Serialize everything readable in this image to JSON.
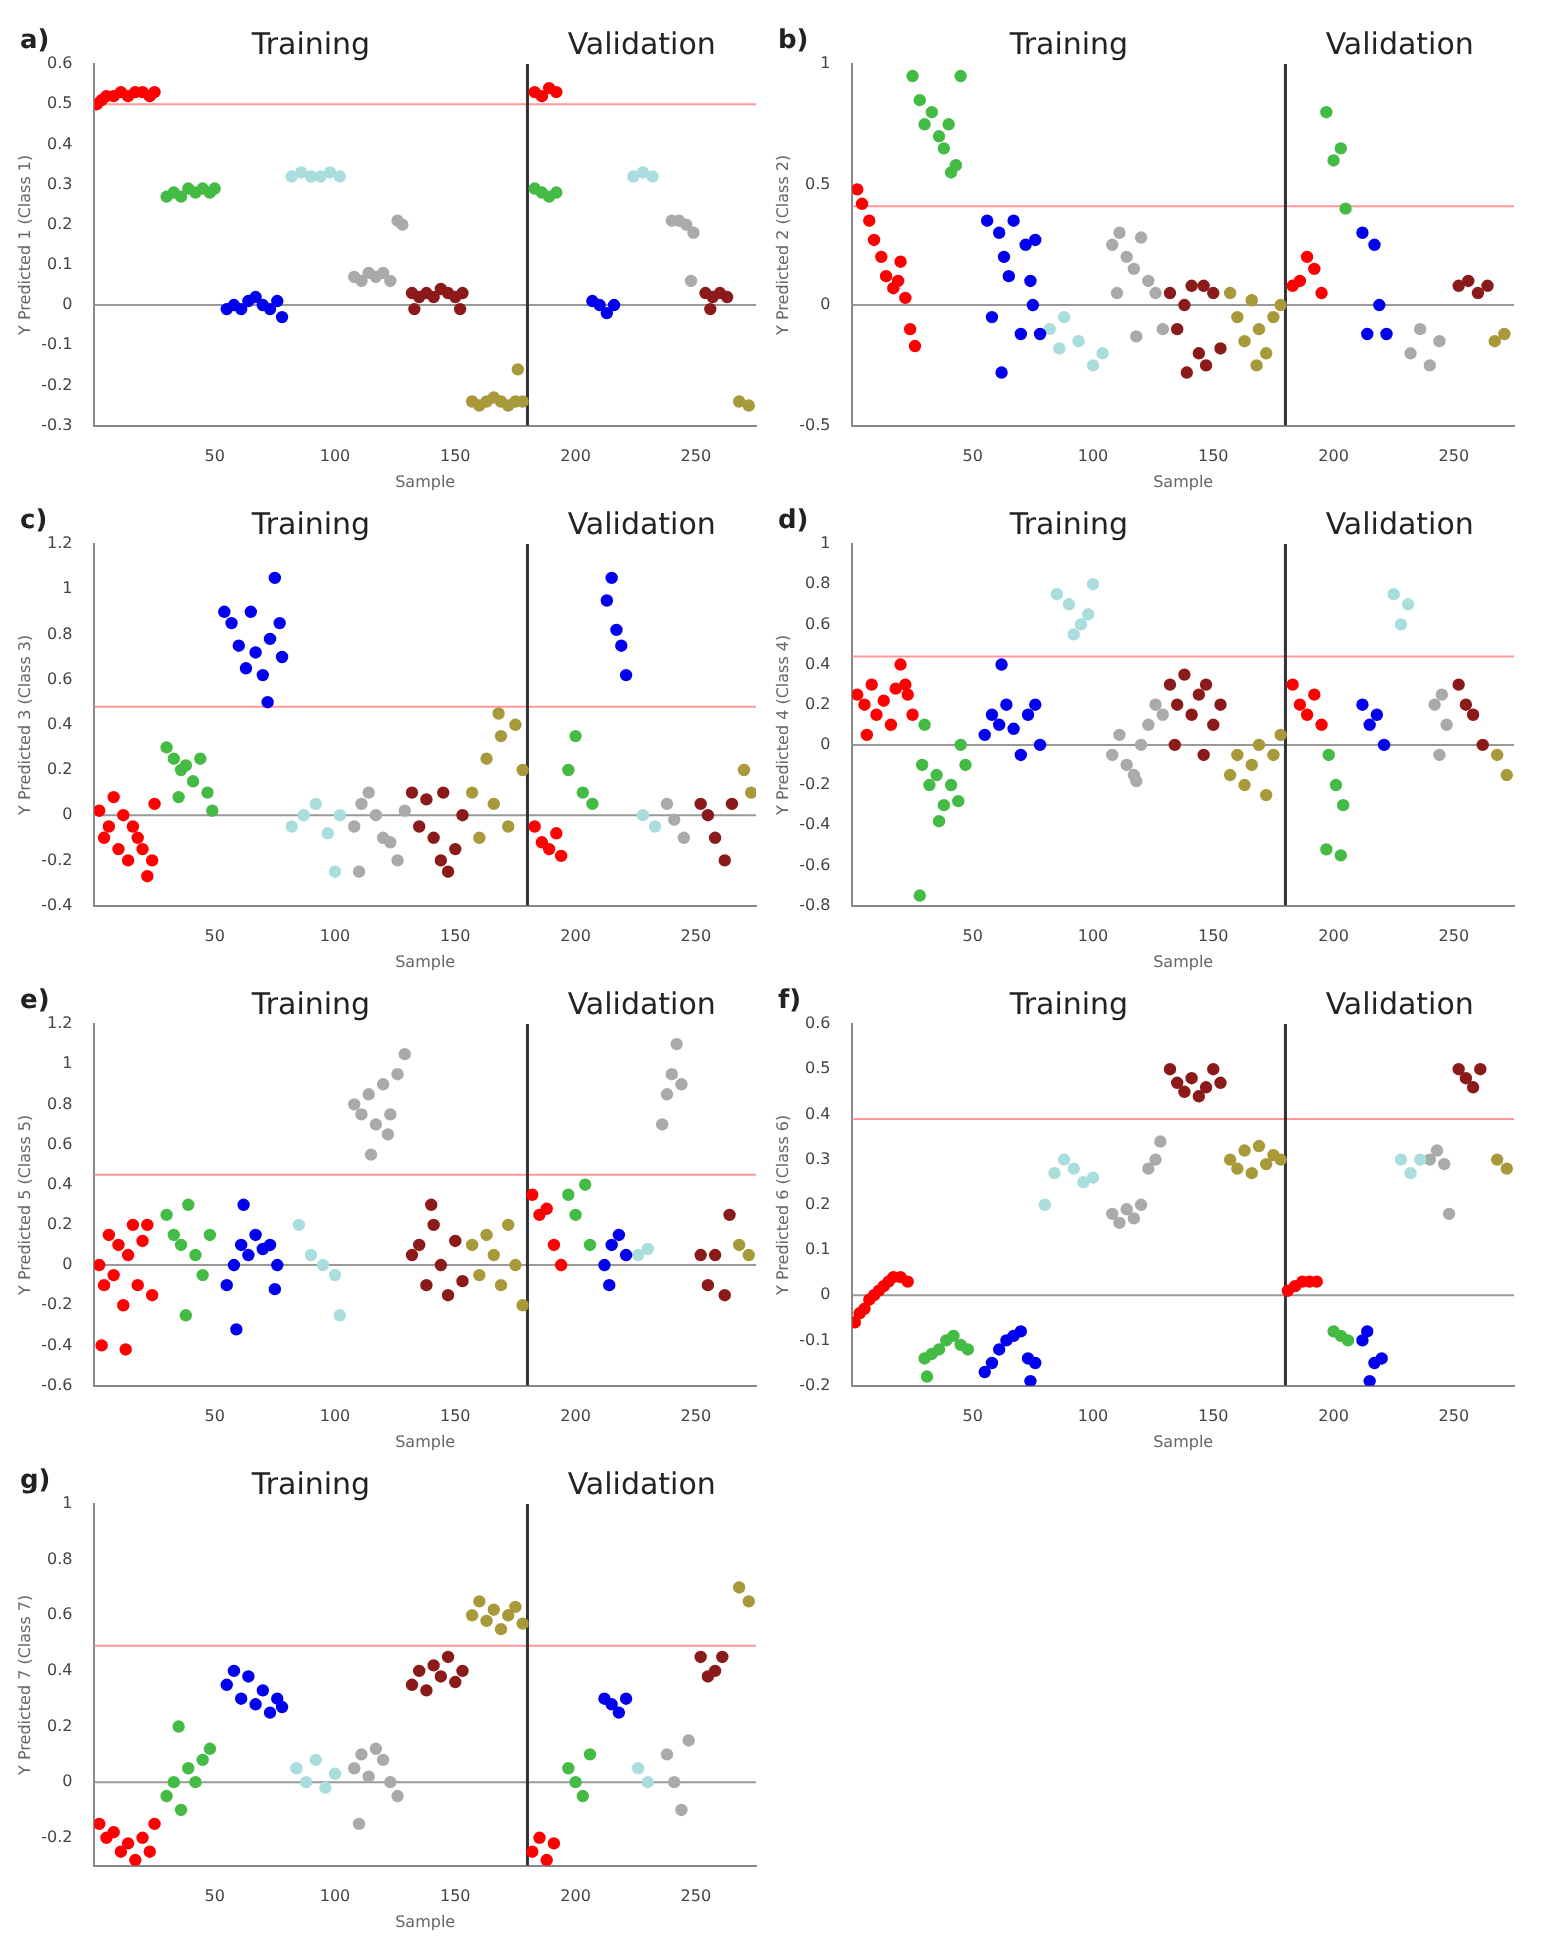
{
  "chart_data": [
    {
      "type": "scatter",
      "title": "a)",
      "xlabel": "Sample",
      "ylabel": "Y Predicted 1 (Class 1)",
      "annotations": [
        "Training",
        "Validation"
      ],
      "marker": "circle",
      "xlim": [
        0,
        275
      ],
      "xticks": [
        50,
        100,
        150,
        200,
        250
      ],
      "ylim": [
        -0.3,
        0.6
      ],
      "yticks": [
        -0.3,
        -0.2,
        -0.1,
        0,
        0.1,
        0.2,
        0.3,
        0.4,
        0.5,
        0.6
      ],
      "ref_lines": [
        {
          "axis": "y",
          "value": 0.5,
          "color": "#ff9999"
        },
        {
          "axis": "y",
          "value": 0,
          "color": "#999999"
        },
        {
          "axis": "x",
          "value": 180,
          "color": "#333333"
        }
      ],
      "series": [
        {
          "color": "#ff0000",
          "x": [
            1,
            3,
            5,
            8,
            11,
            14,
            17,
            20,
            23,
            25,
            183,
            186,
            189,
            192
          ],
          "values": [
            0.5,
            0.51,
            0.52,
            0.52,
            0.53,
            0.52,
            0.53,
            0.53,
            0.52,
            0.53,
            0.53,
            0.52,
            0.54,
            0.53
          ]
        },
        {
          "color": "#44bb44",
          "x": [
            30,
            33,
            36,
            39,
            42,
            45,
            48,
            50,
            183,
            186,
            189,
            192
          ],
          "values": [
            0.27,
            0.28,
            0.27,
            0.29,
            0.28,
            0.29,
            0.28,
            0.29,
            0.29,
            0.28,
            0.27,
            0.28
          ]
        },
        {
          "color": "#0000ee",
          "x": [
            55,
            58,
            61,
            64,
            67,
            70,
            73,
            76,
            78,
            207,
            210,
            213,
            216
          ],
          "values": [
            -0.01,
            0,
            -0.01,
            0.01,
            0.02,
            0,
            -0.01,
            0.01,
            -0.03,
            0.01,
            0,
            -0.02,
            0
          ]
        },
        {
          "color": "#aadddd",
          "x": [
            82,
            86,
            90,
            94,
            98,
            102,
            224,
            228,
            232
          ],
          "values": [
            0.32,
            0.33,
            0.32,
            0.32,
            0.33,
            0.32,
            0.32,
            0.33,
            0.32
          ]
        },
        {
          "color": "#aaaaaa",
          "x": [
            108,
            111,
            114,
            117,
            120,
            123,
            126,
            128,
            240,
            243,
            246,
            249,
            248
          ],
          "values": [
            0.07,
            0.06,
            0.08,
            0.07,
            0.08,
            0.06,
            0.21,
            0.2,
            0.21,
            0.21,
            0.2,
            0.18,
            0.06
          ]
        },
        {
          "color": "#8b1a1a",
          "x": [
            132,
            135,
            138,
            141,
            144,
            147,
            150,
            153,
            133,
            152,
            254,
            257,
            260,
            263,
            256
          ],
          "values": [
            0.03,
            0.02,
            0.03,
            0.02,
            0.04,
            0.03,
            0.02,
            0.03,
            -0.01,
            -0.01,
            0.03,
            0.02,
            0.03,
            0.02,
            -0.01
          ]
        },
        {
          "color": "#a89a3a",
          "x": [
            157,
            160,
            163,
            166,
            169,
            172,
            175,
            178,
            176,
            268,
            272
          ],
          "values": [
            -0.24,
            -0.25,
            -0.24,
            -0.23,
            -0.24,
            -0.25,
            -0.24,
            -0.24,
            -0.16,
            -0.24,
            -0.25
          ]
        }
      ]
    },
    {
      "type": "scatter",
      "title": "b)",
      "xlabel": "Sample",
      "ylabel": "Y Predicted 2 (Class 2)",
      "annotations": [
        "Training",
        "Validation"
      ],
      "marker": "circle",
      "xlim": [
        0,
        275
      ],
      "xticks": [
        50,
        100,
        150,
        200,
        250
      ],
      "ylim": [
        -0.5,
        1
      ],
      "yticks": [
        -0.5,
        0,
        0.5,
        1
      ],
      "ref_lines": [
        {
          "axis": "y",
          "value": 0.41,
          "color": "#ff9999"
        },
        {
          "axis": "y",
          "value": 0,
          "color": "#999999"
        },
        {
          "axis": "x",
          "value": 180,
          "color": "#333333"
        }
      ],
      "series": [
        {
          "color": "#ff0000",
          "x": [
            2,
            4,
            7,
            9,
            12,
            14,
            17,
            19,
            22,
            24,
            26,
            20,
            183,
            186,
            189,
            192,
            195
          ],
          "values": [
            0.48,
            0.42,
            0.35,
            0.27,
            0.2,
            0.12,
            0.07,
            0.1,
            0.03,
            -0.1,
            -0.17,
            0.18,
            0.08,
            0.1,
            0.2,
            0.15,
            0.05
          ]
        },
        {
          "color": "#44bb44",
          "x": [
            25,
            28,
            30,
            33,
            36,
            38,
            41,
            43,
            45,
            40,
            197,
            200,
            203,
            205
          ],
          "values": [
            0.95,
            0.85,
            0.75,
            0.8,
            0.7,
            0.65,
            0.55,
            0.58,
            0.95,
            0.75,
            0.8,
            0.6,
            0.65,
            0.4
          ]
        },
        {
          "color": "#0000ee",
          "x": [
            56,
            58,
            61,
            63,
            65,
            67,
            70,
            72,
            74,
            76,
            78,
            62,
            75,
            212,
            214,
            217,
            219,
            222
          ],
          "values": [
            0.35,
            -0.05,
            0.3,
            0.2,
            0.12,
            0.35,
            -0.12,
            0.25,
            0.1,
            0.27,
            -0.12,
            -0.28,
            0,
            0.3,
            -0.12,
            0.25,
            0,
            -0.12
          ]
        },
        {
          "color": "#aadddd",
          "x": [
            82,
            88,
            94,
            100,
            104,
            86
          ],
          "values": [
            -0.1,
            -0.05,
            -0.15,
            -0.25,
            -0.2,
            -0.18
          ]
        },
        {
          "color": "#aaaaaa",
          "x": [
            108,
            111,
            114,
            117,
            120,
            123,
            126,
            129,
            110,
            118,
            232,
            236,
            240,
            244
          ],
          "values": [
            0.25,
            0.3,
            0.2,
            0.15,
            0.28,
            0.1,
            0.05,
            -0.1,
            0.05,
            -0.13,
            -0.2,
            -0.1,
            -0.25,
            -0.15
          ]
        },
        {
          "color": "#8b1a1a",
          "x": [
            132,
            135,
            138,
            141,
            144,
            147,
            150,
            153,
            139,
            146,
            252,
            256,
            260,
            264
          ],
          "values": [
            0.05,
            -0.1,
            0,
            0.08,
            -0.2,
            -0.25,
            0.05,
            -0.18,
            -0.28,
            0.08,
            0.08,
            0.1,
            0.05,
            0.08
          ]
        },
        {
          "color": "#a89a3a",
          "x": [
            157,
            160,
            163,
            166,
            169,
            172,
            175,
            178,
            168,
            267,
            271
          ],
          "values": [
            0.05,
            -0.05,
            -0.15,
            0.02,
            -0.1,
            -0.2,
            -0.05,
            0,
            -0.25,
            -0.15,
            -0.12
          ]
        }
      ]
    },
    {
      "type": "scatter",
      "title": "c)",
      "xlabel": "Sample",
      "ylabel": "Y Predicted 3 (Class 3)",
      "annotations": [
        "Training",
        "Validation"
      ],
      "marker": "circle",
      "xlim": [
        0,
        275
      ],
      "xticks": [
        50,
        100,
        150,
        200,
        250
      ],
      "ylim": [
        -0.4,
        1.2
      ],
      "yticks": [
        -0.4,
        -0.2,
        0,
        0.2,
        0.4,
        0.6,
        0.8,
        1,
        1.2
      ],
      "ref_lines": [
        {
          "axis": "y",
          "value": 0.48,
          "color": "#ff9999"
        },
        {
          "axis": "y",
          "value": 0,
          "color": "#999999"
        },
        {
          "axis": "x",
          "value": 180,
          "color": "#333333"
        }
      ],
      "series": [
        {
          "color": "#ff0000",
          "x": [
            2,
            4,
            6,
            8,
            10,
            12,
            14,
            16,
            18,
            20,
            22,
            25,
            24,
            183,
            186,
            189,
            192,
            194
          ],
          "values": [
            0.02,
            -0.1,
            -0.05,
            0.08,
            -0.15,
            0,
            -0.2,
            -0.05,
            -0.1,
            -0.15,
            -0.27,
            0.05,
            -0.2,
            -0.05,
            -0.12,
            -0.15,
            -0.08,
            -0.18
          ]
        },
        {
          "color": "#44bb44",
          "x": [
            30,
            33,
            36,
            38,
            41,
            44,
            47,
            49,
            35,
            197,
            200,
            203,
            207
          ],
          "values": [
            0.3,
            0.25,
            0.2,
            0.22,
            0.15,
            0.25,
            0.1,
            0.02,
            0.08,
            0.2,
            0.35,
            0.1,
            0.05
          ]
        },
        {
          "color": "#0000ee",
          "x": [
            54,
            57,
            60,
            63,
            65,
            67,
            70,
            73,
            75,
            78,
            72,
            77,
            213,
            215,
            217,
            219,
            221
          ],
          "values": [
            0.9,
            0.85,
            0.75,
            0.65,
            0.9,
            0.72,
            0.62,
            0.78,
            1.05,
            0.7,
            0.5,
            0.85,
            0.95,
            1.05,
            0.82,
            0.75,
            0.62
          ]
        },
        {
          "color": "#aadddd",
          "x": [
            82,
            87,
            92,
            97,
            102,
            100,
            228,
            233
          ],
          "values": [
            -0.05,
            0,
            0.05,
            -0.08,
            0,
            -0.25,
            0,
            -0.05
          ]
        },
        {
          "color": "#aaaaaa",
          "x": [
            108,
            111,
            114,
            117,
            120,
            123,
            126,
            110,
            129,
            238,
            241,
            245
          ],
          "values": [
            -0.05,
            0.05,
            0.1,
            0,
            -0.1,
            -0.12,
            -0.2,
            -0.25,
            0.02,
            0.05,
            -0.02,
            -0.1
          ]
        },
        {
          "color": "#8b1a1a",
          "x": [
            132,
            135,
            138,
            141,
            144,
            147,
            150,
            153,
            145,
            252,
            255,
            258,
            262,
            265
          ],
          "values": [
            0.1,
            -0.05,
            0.07,
            -0.1,
            -0.2,
            -0.25,
            -0.15,
            0,
            0.1,
            0.05,
            0,
            -0.1,
            -0.2,
            0.05
          ]
        },
        {
          "color": "#a89a3a",
          "x": [
            157,
            160,
            163,
            166,
            169,
            172,
            175,
            178,
            168,
            270,
            273
          ],
          "values": [
            0.1,
            -0.1,
            0.25,
            0.05,
            0.35,
            -0.05,
            0.4,
            0.2,
            0.45,
            0.2,
            0.1
          ]
        }
      ]
    },
    {
      "type": "scatter",
      "title": "d)",
      "xlabel": "Sample",
      "ylabel": "Y Predicted 4 (Class 4)",
      "annotations": [
        "Training",
        "Validation"
      ],
      "marker": "circle",
      "xlim": [
        0,
        275
      ],
      "xticks": [
        50,
        100,
        150,
        200,
        250
      ],
      "ylim": [
        -0.8,
        1
      ],
      "yticks": [
        -0.8,
        -0.6,
        -0.4,
        -0.2,
        0,
        0.2,
        0.4,
        0.6,
        0.8,
        1
      ],
      "ref_lines": [
        {
          "axis": "y",
          "value": 0.44,
          "color": "#ff9999"
        },
        {
          "axis": "y",
          "value": 0,
          "color": "#999999"
        },
        {
          "axis": "x",
          "value": 180,
          "color": "#333333"
        }
      ],
      "series": [
        {
          "color": "#ff0000",
          "x": [
            2,
            5,
            8,
            10,
            13,
            16,
            18,
            20,
            23,
            25,
            6,
            22,
            183,
            186,
            189,
            192,
            195
          ],
          "values": [
            0.25,
            0.2,
            0.3,
            0.15,
            0.22,
            0.1,
            0.28,
            0.4,
            0.25,
            0.15,
            0.05,
            0.3,
            0.3,
            0.2,
            0.15,
            0.25,
            0.1
          ]
        },
        {
          "color": "#44bb44",
          "x": [
            29,
            32,
            35,
            38,
            41,
            44,
            47,
            36,
            30,
            45,
            28,
            198,
            201,
            204,
            197,
            203
          ],
          "values": [
            -0.1,
            -0.2,
            -0.15,
            -0.3,
            -0.2,
            -0.28,
            -0.1,
            -0.38,
            0.1,
            0,
            -0.75,
            -0.05,
            -0.2,
            -0.3,
            -0.52,
            -0.55
          ]
        },
        {
          "color": "#0000ee",
          "x": [
            55,
            58,
            61,
            64,
            67,
            70,
            73,
            76,
            62,
            78,
            212,
            215,
            218,
            221
          ],
          "values": [
            0.05,
            0.15,
            0.1,
            0.2,
            0.08,
            -0.05,
            0.15,
            0.2,
            0.4,
            0,
            0.2,
            0.1,
            0.15,
            0
          ]
        },
        {
          "color": "#aadddd",
          "x": [
            85,
            90,
            95,
            100,
            92,
            98,
            225,
            228,
            231
          ],
          "values": [
            0.75,
            0.7,
            0.6,
            0.8,
            0.55,
            0.65,
            0.75,
            0.6,
            0.7
          ]
        },
        {
          "color": "#aaaaaa",
          "x": [
            108,
            111,
            114,
            117,
            120,
            123,
            126,
            129,
            118,
            242,
            245,
            247,
            244
          ],
          "values": [
            -0.05,
            0.05,
            -0.1,
            -0.15,
            0,
            0.1,
            0.2,
            0.15,
            -0.18,
            0.2,
            0.25,
            0.1,
            -0.05
          ]
        },
        {
          "color": "#8b1a1a",
          "x": [
            132,
            135,
            138,
            141,
            144,
            147,
            150,
            153,
            146,
            134,
            252,
            255,
            258,
            262
          ],
          "values": [
            0.3,
            0.2,
            0.35,
            0.15,
            0.25,
            0.3,
            0.1,
            0.2,
            -0.05,
            0,
            0.3,
            0.2,
            0.15,
            0
          ]
        },
        {
          "color": "#a89a3a",
          "x": [
            157,
            160,
            163,
            166,
            169,
            172,
            175,
            178,
            268,
            272
          ],
          "values": [
            -0.15,
            -0.05,
            -0.2,
            -0.1,
            0,
            -0.25,
            -0.05,
            0.05,
            -0.05,
            -0.15
          ]
        }
      ]
    },
    {
      "type": "scatter",
      "title": "e)",
      "xlabel": "Sample",
      "ylabel": "Y Predicted 5 (Class 5)",
      "annotations": [
        "Training",
        "Validation"
      ],
      "marker": "circle",
      "xlim": [
        0,
        275
      ],
      "xticks": [
        50,
        100,
        150,
        200,
        250
      ],
      "ylim": [
        -0.6,
        1.2
      ],
      "yticks": [
        -0.6,
        -0.4,
        -0.2,
        0,
        0.2,
        0.4,
        0.6,
        0.8,
        1,
        1.2
      ],
      "ref_lines": [
        {
          "axis": "y",
          "value": 0.45,
          "color": "#ff9999"
        },
        {
          "axis": "y",
          "value": 0,
          "color": "#999999"
        },
        {
          "axis": "x",
          "value": 180,
          "color": "#333333"
        }
      ],
      "series": [
        {
          "color": "#ff0000",
          "x": [
            2,
            4,
            6,
            8,
            10,
            12,
            14,
            16,
            18,
            20,
            22,
            24,
            3,
            13,
            182,
            185,
            188,
            191,
            194
          ],
          "values": [
            0,
            -0.1,
            0.15,
            -0.05,
            0.1,
            -0.2,
            0.05,
            0.2,
            -0.1,
            0.12,
            0.2,
            -0.15,
            -0.4,
            -0.42,
            0.35,
            0.25,
            0.28,
            0.1,
            0
          ]
        },
        {
          "color": "#44bb44",
          "x": [
            30,
            33,
            36,
            39,
            42,
            45,
            48,
            38,
            197,
            200,
            204,
            206
          ],
          "values": [
            0.25,
            0.15,
            0.1,
            0.3,
            0.05,
            -0.05,
            0.15,
            -0.25,
            0.35,
            0.25,
            0.4,
            0.1
          ]
        },
        {
          "color": "#0000ee",
          "x": [
            55,
            58,
            61,
            64,
            67,
            70,
            73,
            76,
            62,
            59,
            75,
            212,
            215,
            218,
            221,
            214
          ],
          "values": [
            -0.1,
            0,
            0.1,
            0.05,
            0.15,
            0.08,
            0.1,
            0,
            0.3,
            -0.32,
            -0.12,
            0,
            0.1,
            0.15,
            0.05,
            -0.1
          ]
        },
        {
          "color": "#aadddd",
          "x": [
            85,
            90,
            95,
            100,
            102,
            226,
            230
          ],
          "values": [
            0.2,
            0.05,
            0,
            -0.05,
            -0.25,
            0.05,
            0.08
          ]
        },
        {
          "color": "#aaaaaa",
          "x": [
            108,
            111,
            114,
            117,
            120,
            123,
            126,
            129,
            115,
            122,
            236,
            238,
            240,
            242,
            244
          ],
          "values": [
            0.8,
            0.75,
            0.85,
            0.7,
            0.9,
            0.75,
            0.95,
            1.05,
            0.55,
            0.65,
            0.7,
            0.85,
            0.95,
            1.1,
            0.9
          ]
        },
        {
          "color": "#8b1a1a",
          "x": [
            132,
            135,
            138,
            141,
            144,
            147,
            150,
            153,
            140,
            252,
            255,
            258,
            262,
            264
          ],
          "values": [
            0.05,
            0.1,
            -0.1,
            0.2,
            0,
            -0.15,
            0.12,
            -0.08,
            0.3,
            0.05,
            -0.1,
            0.05,
            -0.15,
            0.25
          ]
        },
        {
          "color": "#a89a3a",
          "x": [
            157,
            160,
            163,
            166,
            169,
            172,
            175,
            178,
            268,
            272
          ],
          "values": [
            0.1,
            -0.05,
            0.15,
            0.05,
            -0.1,
            0.2,
            0,
            -0.2,
            0.1,
            0.05
          ]
        }
      ]
    },
    {
      "type": "scatter",
      "title": "f)",
      "xlabel": "Sample",
      "ylabel": "Y Predicted 6 (Class 6)",
      "annotations": [
        "Training",
        "Validation"
      ],
      "marker": "circle",
      "xlim": [
        0,
        275
      ],
      "xticks": [
        50,
        100,
        150,
        200,
        250
      ],
      "ylim": [
        -0.2,
        0.6
      ],
      "yticks": [
        -0.2,
        -0.1,
        0,
        0.1,
        0.2,
        0.3,
        0.4,
        0.5,
        0.6
      ],
      "ref_lines": [
        {
          "axis": "y",
          "value": 0.39,
          "color": "#ff9999"
        },
        {
          "axis": "y",
          "value": 0,
          "color": "#999999"
        },
        {
          "axis": "x",
          "value": 180,
          "color": "#333333"
        }
      ],
      "series": [
        {
          "color": "#ff0000",
          "x": [
            1,
            3,
            5,
            7,
            9,
            11,
            13,
            15,
            17,
            20,
            23,
            181,
            184,
            187,
            190,
            193
          ],
          "values": [
            -0.06,
            -0.04,
            -0.03,
            -0.01,
            0,
            0.01,
            0.02,
            0.03,
            0.04,
            0.04,
            0.03,
            0.01,
            0.02,
            0.03,
            0.03,
            0.03
          ]
        },
        {
          "color": "#44bb44",
          "x": [
            30,
            33,
            36,
            39,
            42,
            45,
            48,
            31,
            200,
            203,
            206
          ],
          "values": [
            -0.14,
            -0.13,
            -0.12,
            -0.1,
            -0.09,
            -0.11,
            -0.12,
            -0.18,
            -0.08,
            -0.09,
            -0.1
          ]
        },
        {
          "color": "#0000ee",
          "x": [
            55,
            58,
            61,
            64,
            67,
            70,
            73,
            76,
            74,
            212,
            214,
            217,
            220,
            215
          ],
          "values": [
            -0.17,
            -0.15,
            -0.12,
            -0.1,
            -0.09,
            -0.08,
            -0.14,
            -0.15,
            -0.19,
            -0.1,
            -0.08,
            -0.15,
            -0.14,
            -0.19
          ]
        },
        {
          "color": "#aadddd",
          "x": [
            84,
            88,
            92,
            96,
            100,
            80,
            228,
            232,
            236
          ],
          "values": [
            0.27,
            0.3,
            0.28,
            0.25,
            0.26,
            0.2,
            0.3,
            0.27,
            0.3
          ]
        },
        {
          "color": "#aaaaaa",
          "x": [
            108,
            111,
            114,
            117,
            120,
            123,
            126,
            128,
            240,
            243,
            246,
            248
          ],
          "values": [
            0.18,
            0.16,
            0.19,
            0.17,
            0.2,
            0.28,
            0.3,
            0.34,
            0.3,
            0.32,
            0.29,
            0.18
          ]
        },
        {
          "color": "#8b1a1a",
          "x": [
            132,
            135,
            138,
            141,
            144,
            147,
            150,
            153,
            252,
            255,
            258,
            261
          ],
          "values": [
            0.5,
            0.47,
            0.45,
            0.48,
            0.44,
            0.46,
            0.5,
            0.47,
            0.5,
            0.48,
            0.46,
            0.5
          ]
        },
        {
          "color": "#a89a3a",
          "x": [
            157,
            160,
            163,
            166,
            169,
            172,
            175,
            178,
            268,
            272
          ],
          "values": [
            0.3,
            0.28,
            0.32,
            0.27,
            0.33,
            0.29,
            0.31,
            0.3,
            0.3,
            0.28
          ]
        }
      ]
    },
    {
      "type": "scatter",
      "title": "g)",
      "xlabel": "Sample",
      "ylabel": "Y Predicted 7 (Class 7)",
      "annotations": [
        "Training",
        "Validation"
      ],
      "marker": "circle",
      "xlim": [
        0,
        275
      ],
      "xticks": [
        50,
        100,
        150,
        200,
        250
      ],
      "ylim": [
        -0.3,
        1
      ],
      "yticks": [
        -0.2,
        0,
        0.2,
        0.4,
        0.6,
        0.8,
        1
      ],
      "ref_lines": [
        {
          "axis": "y",
          "value": 0.49,
          "color": "#ff9999"
        },
        {
          "axis": "y",
          "value": 0,
          "color": "#999999"
        },
        {
          "axis": "x",
          "value": 180,
          "color": "#333333"
        }
      ],
      "series": [
        {
          "color": "#ff0000",
          "x": [
            2,
            5,
            8,
            11,
            14,
            17,
            20,
            23,
            25,
            182,
            185,
            188,
            191
          ],
          "values": [
            -0.15,
            -0.2,
            -0.18,
            -0.25,
            -0.22,
            -0.28,
            -0.2,
            -0.25,
            -0.15,
            -0.25,
            -0.2,
            -0.28,
            -0.22
          ]
        },
        {
          "color": "#44bb44",
          "x": [
            30,
            33,
            36,
            39,
            42,
            45,
            48,
            35,
            197,
            200,
            203,
            206
          ],
          "values": [
            -0.05,
            0,
            -0.1,
            0.05,
            0,
            0.08,
            0.12,
            0.2,
            0.05,
            0,
            -0.05,
            0.1
          ]
        },
        {
          "color": "#0000ee",
          "x": [
            55,
            58,
            61,
            64,
            67,
            70,
            73,
            76,
            78,
            212,
            215,
            218,
            221
          ],
          "values": [
            0.35,
            0.4,
            0.3,
            0.38,
            0.28,
            0.33,
            0.25,
            0.3,
            0.27,
            0.3,
            0.28,
            0.25,
            0.3
          ]
        },
        {
          "color": "#aadddd",
          "x": [
            84,
            88,
            92,
            96,
            100,
            226,
            230
          ],
          "values": [
            0.05,
            0,
            0.08,
            -0.02,
            0.03,
            0.05,
            0
          ]
        },
        {
          "color": "#aaaaaa",
          "x": [
            108,
            111,
            114,
            117,
            120,
            123,
            126,
            110,
            238,
            241,
            244,
            247
          ],
          "values": [
            0.05,
            0.1,
            0.02,
            0.12,
            0.08,
            0,
            -0.05,
            -0.15,
            0.1,
            0,
            -0.1,
            0.15
          ]
        },
        {
          "color": "#8b1a1a",
          "x": [
            132,
            135,
            138,
            141,
            144,
            147,
            150,
            153,
            252,
            255,
            258,
            261
          ],
          "values": [
            0.35,
            0.4,
            0.33,
            0.42,
            0.38,
            0.45,
            0.36,
            0.4,
            0.45,
            0.38,
            0.4,
            0.45
          ]
        },
        {
          "color": "#a89a3a",
          "x": [
            157,
            160,
            163,
            166,
            169,
            172,
            175,
            178,
            268,
            272
          ],
          "values": [
            0.6,
            0.65,
            0.58,
            0.62,
            0.55,
            0.6,
            0.63,
            0.57,
            0.7,
            0.65
          ]
        }
      ]
    }
  ]
}
